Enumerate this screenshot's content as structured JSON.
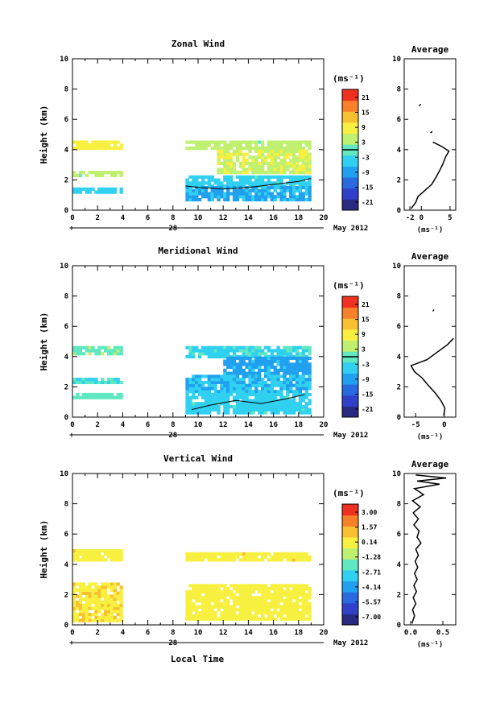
{
  "figure": {
    "xlabel": "Local Time",
    "date_label": "May 2012",
    "day_label": "28",
    "x_unit": "(ms⁻¹)"
  },
  "chart_data": [
    {
      "type": "heatmap",
      "id": "zonal",
      "title": "Zonal Wind",
      "ylabel": "Height (km)",
      "xlim": [
        0,
        20
      ],
      "ylim": [
        0,
        10
      ],
      "x_ticks": [
        "0",
        "2",
        "4",
        "6",
        "8",
        "10",
        "12",
        "14",
        "16",
        "18",
        "20"
      ],
      "y_ticks": [
        "0",
        "2",
        "4",
        "6",
        "8",
        "10"
      ],
      "colorbar": {
        "unit": "(ms⁻¹)",
        "ticks": [
          "21",
          "15",
          "9",
          "3",
          "-3",
          "-9",
          "-15",
          "-21"
        ],
        "range": [
          -24,
          24
        ],
        "colors": [
          "#2a2a80",
          "#3040c8",
          "#2a6ae0",
          "#20a0ee",
          "#30d0f0",
          "#60e8c0",
          "#c0f070",
          "#f8f040",
          "#f8c030",
          "#f88028",
          "#f03020"
        ]
      },
      "regions": [
        {
          "x": [
            0,
            4
          ],
          "y": [
            4.0,
            4.6
          ],
          "value": 9
        },
        {
          "x": [
            0,
            4
          ],
          "y": [
            2.2,
            2.6
          ],
          "value": 4
        },
        {
          "x": [
            0,
            4
          ],
          "y": [
            1.1,
            1.5
          ],
          "value": -5
        },
        {
          "x": [
            9,
            19
          ],
          "y": [
            4.0,
            4.6
          ],
          "value": 4
        },
        {
          "x": [
            11.5,
            19
          ],
          "y": [
            2.4,
            4.0
          ],
          "value": 6
        },
        {
          "x": [
            9,
            19
          ],
          "y": [
            1.5,
            2.3
          ],
          "value": -4
        },
        {
          "x": [
            9,
            19
          ],
          "y": [
            0.6,
            1.5
          ],
          "value": -7
        }
      ],
      "zero_contour": {
        "x": [
          9,
          10,
          12,
          14,
          16,
          18,
          19
        ],
        "y": [
          1.6,
          1.5,
          1.4,
          1.5,
          1.7,
          1.9,
          2.1
        ]
      },
      "average": {
        "title": "Average",
        "xlim": [
          -3,
          6
        ],
        "x_ticks": [
          "-2",
          "0",
          "5"
        ],
        "x_tick_values": [
          -2,
          0,
          5
        ],
        "profile": [
          {
            "y": 0.1,
            "x": -1.8
          },
          {
            "y": 0.5,
            "x": -1.0
          },
          {
            "y": 0.9,
            "x": -0.6
          },
          {
            "y": 1.3,
            "x": 0.6
          },
          {
            "y": 1.7,
            "x": 1.8
          },
          {
            "y": 2.2,
            "x": 2.6
          },
          {
            "y": 2.7,
            "x": 3.3
          },
          {
            "y": 3.1,
            "x": 3.8
          },
          {
            "y": 3.5,
            "x": 4.2
          },
          {
            "y": 3.9,
            "x": 4.8
          },
          {
            "y": 4.2,
            "x": 3.6
          },
          {
            "y": 4.5,
            "x": 2.0
          }
        ],
        "fragments": [
          {
            "y": [
              6.9,
              7.0
            ],
            "x": [
              -0.4,
              -0.1
            ]
          },
          {
            "y": [
              5.1,
              5.2
            ],
            "x": [
              1.6,
              1.9
            ]
          }
        ]
      }
    },
    {
      "type": "heatmap",
      "id": "meridional",
      "title": "Meridional Wind",
      "ylabel": "Height (km)",
      "xlim": [
        0,
        20
      ],
      "ylim": [
        0,
        10
      ],
      "x_ticks": [
        "0",
        "2",
        "4",
        "6",
        "8",
        "10",
        "12",
        "14",
        "16",
        "18",
        "20"
      ],
      "y_ticks": [
        "0",
        "2",
        "4",
        "6",
        "8",
        "10"
      ],
      "colorbar": {
        "unit": "(ms⁻¹)",
        "ticks": [
          "21",
          "15",
          "9",
          "3",
          "-3",
          "-9",
          "-15",
          "-21"
        ],
        "range": [
          -24,
          24
        ],
        "colors": [
          "#2a2a80",
          "#3040c8",
          "#2a6ae0",
          "#20a0ee",
          "#30d0f0",
          "#60e8c0",
          "#c0f070",
          "#f8f040",
          "#f8c030",
          "#f88028",
          "#f03020"
        ]
      },
      "regions": [
        {
          "x": [
            0,
            4
          ],
          "y": [
            4.1,
            4.6
          ],
          "value": 1
        },
        {
          "x": [
            0,
            4
          ],
          "y": [
            2.2,
            2.6
          ],
          "value": -2
        },
        {
          "x": [
            0,
            4
          ],
          "y": [
            1.2,
            1.6
          ],
          "value": 0
        },
        {
          "x": [
            9,
            19
          ],
          "y": [
            3.9,
            4.6
          ],
          "value": -3
        },
        {
          "x": [
            12,
            19
          ],
          "y": [
            2.8,
            3.9
          ],
          "value": -8
        },
        {
          "x": [
            9,
            19
          ],
          "y": [
            1.6,
            2.8
          ],
          "value": -6
        },
        {
          "x": [
            9,
            19
          ],
          "y": [
            0.2,
            1.6
          ],
          "value": -4
        }
      ],
      "zero_contour": {
        "x": [
          9.5,
          11,
          13,
          15,
          17,
          18.5
        ],
        "y": [
          0.5,
          0.8,
          1.1,
          0.9,
          1.2,
          1.5
        ]
      },
      "average": {
        "title": "Average",
        "xlim": [
          -7,
          2
        ],
        "x_ticks": [
          "-5",
          "0"
        ],
        "x_tick_values": [
          -5,
          0
        ],
        "profile": [
          {
            "y": 0.1,
            "x": -0.1
          },
          {
            "y": 0.6,
            "x": 0.1
          },
          {
            "y": 1.1,
            "x": -0.6
          },
          {
            "y": 1.6,
            "x": -1.6
          },
          {
            "y": 2.1,
            "x": -2.8
          },
          {
            "y": 2.6,
            "x": -3.9
          },
          {
            "y": 3.0,
            "x": -5.2
          },
          {
            "y": 3.4,
            "x": -5.8
          },
          {
            "y": 3.8,
            "x": -3.0
          },
          {
            "y": 4.3,
            "x": -1.2
          },
          {
            "y": 4.8,
            "x": 0.6
          },
          {
            "y": 5.2,
            "x": 1.6
          }
        ],
        "fragments": [
          {
            "y": [
              7.0,
              7.1
            ],
            "x": [
              -2.0,
              -1.8
            ]
          }
        ]
      }
    },
    {
      "type": "heatmap",
      "id": "vertical",
      "title": "Vertical Wind",
      "ylabel": "Height (km)",
      "xlim": [
        0,
        20
      ],
      "ylim": [
        0,
        10
      ],
      "x_ticks": [
        "0",
        "2",
        "4",
        "6",
        "8",
        "10",
        "12",
        "14",
        "16",
        "18",
        "20"
      ],
      "y_ticks": [
        "0",
        "2",
        "4",
        "6",
        "8",
        "10"
      ],
      "colorbar": {
        "unit": "(ms⁻¹)",
        "ticks": [
          "3.00",
          "1.57",
          "0.14",
          "-1.28",
          "-2.71",
          "-4.14",
          "-5.57",
          "-7.00"
        ],
        "range": [
          -8,
          4
        ],
        "colors": [
          "#2a2a80",
          "#3040c8",
          "#2a6ae0",
          "#20a0ee",
          "#30d0f0",
          "#60e8c0",
          "#c0f070",
          "#f8f040",
          "#f8c030",
          "#f88028",
          "#f03020"
        ]
      },
      "regions": [
        {
          "x": [
            0,
            4
          ],
          "y": [
            4.2,
            5.0
          ],
          "value": 0.3
        },
        {
          "x": [
            0,
            4
          ],
          "y": [
            0.2,
            2.8
          ],
          "value": 0.5
        },
        {
          "x": [
            9,
            19
          ],
          "y": [
            4.2,
            4.8
          ],
          "value": 0.3
        },
        {
          "x": [
            9,
            19
          ],
          "y": [
            0.3,
            2.6
          ],
          "value": 0.2
        }
      ],
      "zero_contour": null,
      "average": {
        "title": "Average",
        "xlim": [
          -0.1,
          0.7
        ],
        "x_ticks": [
          "0.0",
          "0.5"
        ],
        "x_tick_values": [
          0.0,
          0.5
        ],
        "profile": [
          {
            "y": 0.1,
            "x": 0.02
          },
          {
            "y": 0.6,
            "x": 0.06
          },
          {
            "y": 1.0,
            "x": 0.03
          },
          {
            "y": 1.4,
            "x": 0.08
          },
          {
            "y": 1.8,
            "x": 0.04
          },
          {
            "y": 2.2,
            "x": 0.09
          },
          {
            "y": 2.6,
            "x": 0.05
          },
          {
            "y": 3.0,
            "x": 0.1
          },
          {
            "y": 3.4,
            "x": 0.06
          },
          {
            "y": 3.8,
            "x": 0.11
          },
          {
            "y": 4.2,
            "x": 0.07
          },
          {
            "y": 4.6,
            "x": 0.12
          },
          {
            "y": 5.0,
            "x": 0.08
          },
          {
            "y": 5.4,
            "x": 0.16
          },
          {
            "y": 5.8,
            "x": 0.1
          },
          {
            "y": 6.2,
            "x": 0.13
          },
          {
            "y": 6.6,
            "x": 0.05
          },
          {
            "y": 7.0,
            "x": 0.12
          },
          {
            "y": 7.4,
            "x": 0.04
          },
          {
            "y": 7.8,
            "x": 0.15
          },
          {
            "y": 8.2,
            "x": 0.03
          },
          {
            "y": 8.6,
            "x": 0.2
          },
          {
            "y": 9.0,
            "x": 0.06
          },
          {
            "y": 9.3,
            "x": 0.45
          },
          {
            "y": 9.5,
            "x": 0.1
          },
          {
            "y": 9.7,
            "x": 0.55
          },
          {
            "y": 9.9,
            "x": 0.08
          }
        ],
        "fragments": []
      }
    }
  ]
}
